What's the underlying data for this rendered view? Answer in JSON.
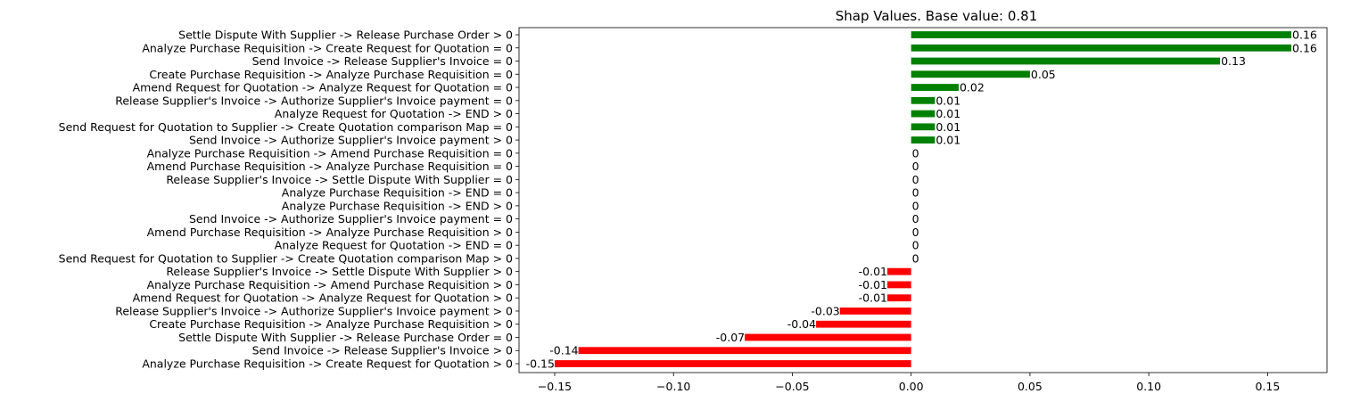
{
  "chart_data": {
    "type": "bar",
    "orientation": "horizontal",
    "title": "Shap Values. Base value: 0.81",
    "xlabel": "",
    "ylabel": "",
    "xlim": [
      -0.165,
      0.175
    ],
    "xticks": [
      -0.15,
      -0.1,
      -0.05,
      0.0,
      0.05,
      0.1,
      0.15
    ],
    "xtick_labels": [
      "−0.15",
      "−0.10",
      "−0.05",
      "0.00",
      "0.05",
      "0.10",
      "0.15"
    ],
    "grid": false,
    "positive_color": "#008000",
    "negative_color": "#ff0000",
    "categories": [
      "Settle Dispute With Supplier -> Release Purchase Order > 0",
      "Analyze Purchase Requisition -> Create Request for Quotation = 0",
      "Send Invoice -> Release Supplier's Invoice = 0",
      "Create Purchase Requisition -> Analyze Purchase Requisition = 0",
      "Amend Request for Quotation -> Analyze Request for Quotation = 0",
      "Release Supplier's Invoice -> Authorize Supplier's Invoice payment = 0",
      "Analyze Request for Quotation -> END > 0",
      "Send Request for Quotation to Supplier -> Create Quotation comparison Map = 0",
      "Send Invoice -> Authorize Supplier's Invoice payment > 0",
      "Analyze Purchase Requisition -> Amend Purchase Requisition = 0",
      "Amend Purchase Requisition -> Analyze Purchase Requisition = 0",
      "Release Supplier's Invoice -> Settle Dispute With Supplier = 0",
      "Analyze Purchase Requisition -> END = 0",
      "Analyze Purchase Requisition -> END > 0",
      "Send Invoice -> Authorize Supplier's Invoice payment = 0",
      "Amend Purchase Requisition -> Analyze Purchase Requisition > 0",
      "Analyze Request for Quotation -> END = 0",
      "Send Request for Quotation to Supplier -> Create Quotation comparison Map > 0",
      "Release Supplier's Invoice -> Settle Dispute With Supplier > 0",
      "Analyze Purchase Requisition -> Amend Purchase Requisition > 0",
      "Amend Request for Quotation -> Analyze Request for Quotation > 0",
      "Release Supplier's Invoice -> Authorize Supplier's Invoice payment > 0",
      "Create Purchase Requisition -> Analyze Purchase Requisition > 0",
      "Settle Dispute With Supplier -> Release Purchase Order = 0",
      "Send Invoice -> Release Supplier's Invoice > 0",
      "Analyze Purchase Requisition -> Create Request for Quotation > 0"
    ],
    "values": [
      0.16,
      0.16,
      0.13,
      0.05,
      0.02,
      0.01,
      0.01,
      0.01,
      0.01,
      0,
      0,
      0,
      0,
      0,
      0,
      0,
      0,
      0,
      -0.01,
      -0.01,
      -0.01,
      -0.03,
      -0.04,
      -0.07,
      -0.14,
      -0.15
    ],
    "value_labels": [
      "0.16",
      "0.16",
      "0.13",
      "0.05",
      "0.02",
      "0.01",
      "0.01",
      "0.01",
      "0.01",
      "0",
      "0",
      "0",
      "0",
      "0",
      "0",
      "0",
      "0",
      "0",
      "-0.01",
      "-0.01",
      "-0.01",
      "-0.03",
      "-0.04",
      "-0.07",
      "-0.14",
      "-0.15"
    ]
  }
}
